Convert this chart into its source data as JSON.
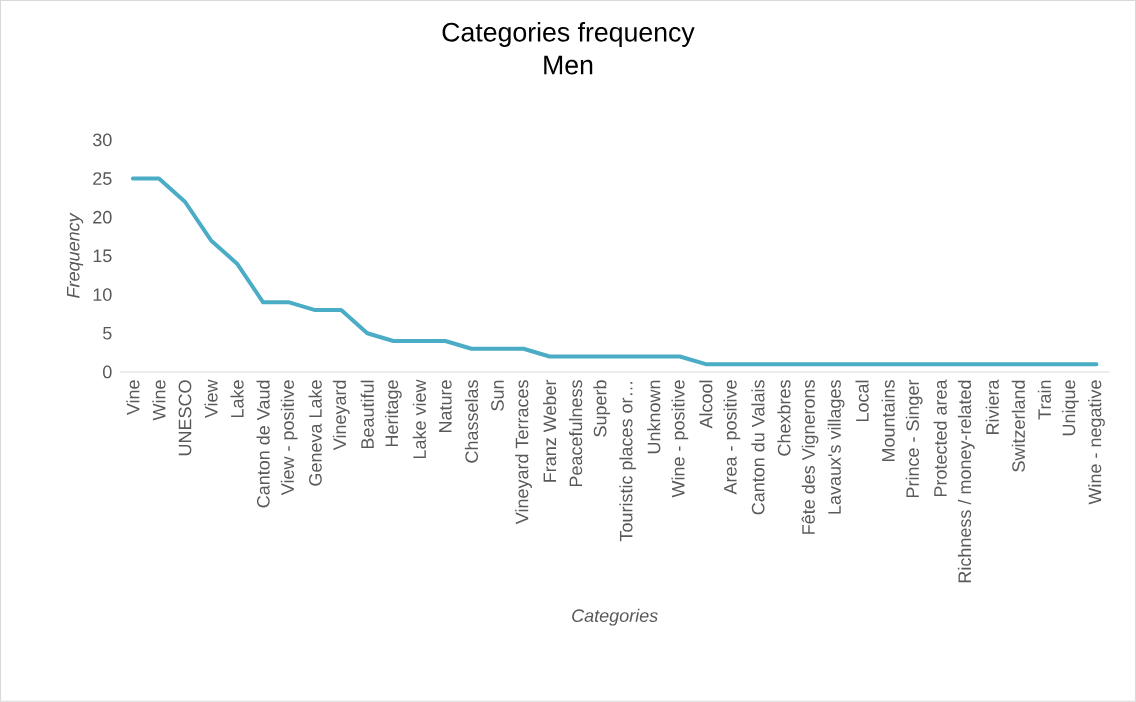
{
  "chart_data": {
    "type": "line",
    "title": "Categories frequency",
    "subtitle": "Men",
    "xlabel": "Categories",
    "ylabel": "Frequency",
    "categories": [
      "Vine",
      "Wine",
      "UNESCO",
      "View",
      "Lake",
      "Canton de Vaud",
      "View - positive",
      "Geneva Lake",
      "Vineyard",
      "Beautiful",
      "Heritage",
      "Lake view",
      "Nature",
      "Chasselas",
      "Sun",
      "Vineyard Terraces",
      "Franz Weber",
      "Peacefulness",
      "Superb",
      "Touristic places or…",
      "Unknown",
      "Wine - positive",
      "Alcool",
      "Area - positive",
      "Canton du Valais",
      "Chexbres",
      "Fête des Vignerons",
      "Lavaux's villages",
      "Local",
      "Mountains",
      "Prince - Singer",
      "Protected area",
      "Richness / money-related",
      "Riviera",
      "Switzerland",
      "Train",
      "Unique",
      "Wine - negative"
    ],
    "series": [
      {
        "color": "#4bacc6",
        "values": [
          25,
          25,
          22,
          17,
          14,
          9,
          9,
          8,
          8,
          5,
          4,
          4,
          4,
          3,
          3,
          3,
          2,
          2,
          2,
          2,
          2,
          2,
          1,
          1,
          1,
          1,
          1,
          1,
          1,
          1,
          1,
          1,
          1,
          1,
          1,
          1,
          1,
          1
        ]
      }
    ],
    "ylim": [
      0,
      30
    ],
    "yticks": [
      0,
      5,
      10,
      15,
      20,
      25,
      30
    ]
  }
}
